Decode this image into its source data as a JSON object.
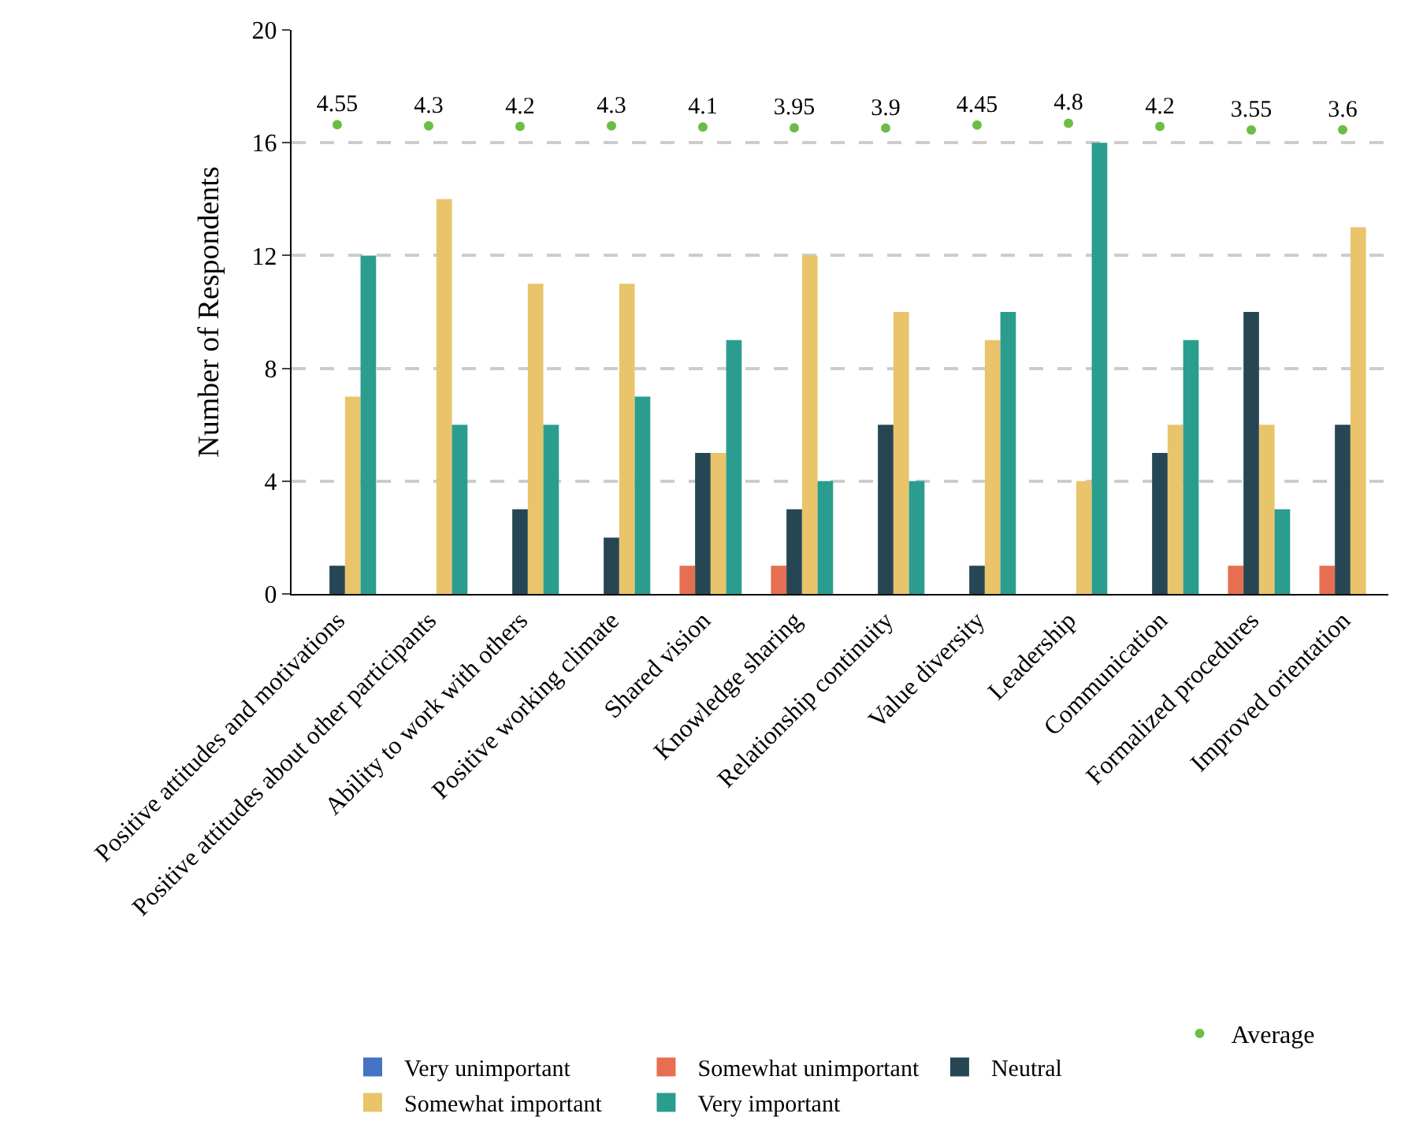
{
  "chart_data": {
    "type": "bar",
    "ylabel": "Number of Respondents",
    "categories": [
      "Positive attitudes and motivations",
      "Positive attitudes about other participants",
      "Ability to work with others",
      "Positive working climate",
      "Shared vision",
      "Knowledge sharing",
      "Relationship continuity",
      "Value diversity",
      "Leadership",
      "Communication",
      "Formalized procedures",
      "Improved orientation"
    ],
    "series": [
      {
        "name": "Very unimportant",
        "color": "#4472c4",
        "values": [
          0,
          0,
          0,
          0,
          0,
          0,
          0,
          0,
          0,
          0,
          0,
          0
        ]
      },
      {
        "name": "Somewhat unimportant",
        "color": "#e76f51",
        "values": [
          0,
          0,
          0,
          0,
          1,
          1,
          0,
          0,
          0,
          0,
          1,
          1
        ]
      },
      {
        "name": "Neutral",
        "color": "#264653",
        "values": [
          1,
          0,
          3,
          2,
          5,
          3,
          6,
          1,
          0,
          5,
          10,
          6
        ]
      },
      {
        "name": "Somewhat important",
        "color": "#e9c46a",
        "values": [
          7,
          14,
          11,
          11,
          5,
          12,
          10,
          9,
          4,
          6,
          6,
          13
        ]
      },
      {
        "name": "Very important",
        "color": "#2a9d8f",
        "values": [
          12,
          6,
          6,
          7,
          9,
          4,
          4,
          10,
          16,
          9,
          3,
          null
        ]
      },
      {
        "name": "Average",
        "type": "scatter",
        "axis": "y2",
        "color": "#6abe45",
        "marker": "circle",
        "data_labels": true,
        "values": [
          4.55,
          4.3,
          4.2,
          4.3,
          4.1,
          3.95,
          3.9,
          4.45,
          4.8,
          4.2,
          3.55,
          3.6
        ]
      }
    ],
    "ylim": [
      0,
      20
    ],
    "yticks": [
      0,
      4,
      8,
      12,
      16,
      20
    ],
    "y2lim": [
      -82,
      22
    ],
    "grid": "y",
    "legend": "bottom"
  }
}
